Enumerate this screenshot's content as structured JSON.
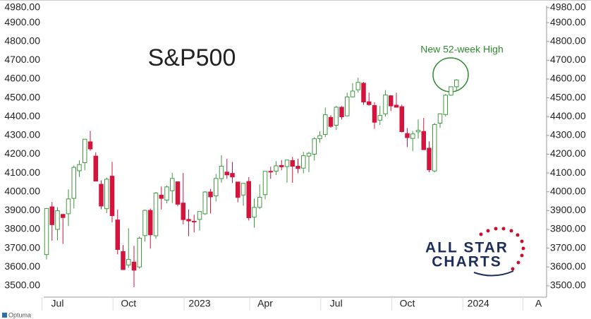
{
  "chart_data": {
    "type": "candlestick",
    "title": "S&P500",
    "annotation": "New 52-week High",
    "categories": [
      null,
      null,
      "Jul",
      null,
      null,
      null,
      null,
      null,
      null,
      null,
      null,
      null,
      null,
      null,
      null,
      "Oct",
      null,
      null,
      null,
      null,
      null,
      null,
      null,
      null,
      null,
      null,
      null,
      null,
      "2023",
      null,
      null,
      null,
      null,
      null,
      null,
      null,
      null,
      null,
      null,
      null,
      "Apr",
      null,
      null,
      null,
      null,
      null,
      null,
      null,
      null,
      null,
      null,
      null,
      null,
      "Jul",
      null,
      null,
      null,
      null,
      null,
      null,
      null,
      null,
      null,
      null,
      null,
      null,
      "Oct",
      null,
      null,
      null,
      null,
      null,
      null,
      null,
      null,
      null,
      null,
      null,
      null,
      "2024",
      null,
      null,
      null,
      null,
      null,
      null,
      null,
      null,
      null,
      null,
      "A"
    ],
    "open": [
      3666,
      3920,
      3800,
      3880,
      3883,
      3965,
      4112,
      4155,
      4266,
      4190,
      4040,
      3910,
      4083,
      3850,
      3682,
      3610,
      3626,
      3600,
      3767,
      3901,
      3766,
      3982,
      3956,
      4006,
      4053,
      3940,
      3853,
      3843,
      3853,
      3883,
      3999,
      3978,
      4070,
      4105,
      4098,
      4052,
      3983,
      4055,
      3865,
      3917,
      3985,
      4109,
      4110,
      4140,
      4134,
      4166,
      4136,
      4126,
      4190,
      4200,
      4283,
      4305,
      4396,
      4354,
      4450,
      4404,
      4505,
      4543,
      4578,
      4479,
      4459,
      4381,
      4415,
      4511,
      4461,
      4453,
      4310,
      4284,
      4319,
      4321,
      4232,
      4111,
      4365,
      4411,
      4514,
      4559,
      null,
      null,
      null,
      null,
      null,
      null,
      null,
      null,
      null,
      null,
      null,
      null,
      null,
      null,
      null
    ],
    "high": [
      3913,
      3946,
      3919,
      3880,
      4013,
      4140,
      4167,
      4280,
      4325,
      4210,
      4061,
      4076,
      4159,
      3906,
      3717,
      3806,
      3712,
      3762,
      3905,
      3911,
      3999,
      4028,
      4034,
      4101,
      4053,
      4100,
      3906,
      3878,
      3895,
      4003,
      4015,
      4095,
      4195,
      4176,
      4159,
      4052,
      4047,
      4078,
      3964,
      4040,
      4110,
      4133,
      4163,
      4169,
      4170,
      4186,
      4175,
      4212,
      4212,
      4291,
      4322,
      4448,
      4408,
      4458,
      4456,
      4528,
      4578,
      4607,
      4584,
      4527,
      4477,
      4458,
      4541,
      4514,
      4527,
      4464,
      4339,
      4324,
      4385,
      4393,
      4268,
      4366,
      4418,
      4520,
      4560,
      4599,
      null,
      null,
      null,
      null,
      null,
      null,
      null,
      null,
      null,
      null,
      null,
      null,
      null,
      null,
      null
    ],
    "low": [
      3640,
      3740,
      3742,
      3722,
      3818,
      3911,
      4079,
      4114,
      4218,
      4057,
      3907,
      3886,
      3837,
      3667,
      3584,
      3595,
      3492,
      3590,
      3735,
      3698,
      3750,
      3906,
      3938,
      3940,
      3923,
      3827,
      3764,
      3784,
      3794,
      3877,
      3885,
      3949,
      4049,
      4069,
      4047,
      3944,
      3926,
      3847,
      3809,
      3908,
      3960,
      4069,
      4089,
      4114,
      4049,
      4048,
      4099,
      4098,
      4104,
      4166,
      4261,
      4291,
      4341,
      4329,
      4385,
      4402,
      4502,
      4528,
      4463,
      4458,
      4335,
      4356,
      4401,
      4430,
      4448,
      4316,
      4238,
      4216,
      4283,
      4223,
      4104,
      4103,
      4340,
      4401,
      4511,
      4537,
      null,
      null,
      null,
      null,
      null,
      null,
      null,
      null,
      null,
      null,
      null,
      null,
      null,
      null,
      null
    ],
    "close": [
      3911,
      3825,
      3899,
      3863,
      3962,
      4130,
      4145,
      4280,
      4228,
      4057,
      3924,
      4067,
      3873,
      3693,
      3586,
      3640,
      3583,
      3753,
      3901,
      3771,
      3993,
      3965,
      4026,
      4071,
      3934,
      3852,
      3845,
      3840,
      3895,
      3999,
      3973,
      4071,
      4136,
      4090,
      4079,
      3970,
      4045,
      3862,
      3917,
      3971,
      4109,
      4105,
      4138,
      4133,
      4169,
      4136,
      4124,
      4192,
      4205,
      4282,
      4299,
      4410,
      4348,
      4450,
      4399,
      4505,
      4536,
      4582,
      4478,
      4464,
      4370,
      4406,
      4515,
      4457,
      4450,
      4320,
      4288,
      4308,
      4327,
      4224,
      4117,
      4358,
      4415,
      4514,
      4559,
      4595,
      null,
      null,
      null,
      null,
      null,
      null,
      null,
      null,
      null,
      null,
      null,
      null,
      null,
      null,
      null
    ],
    "up_color": "#3f9a3f",
    "down_color": "#d4143c",
    "ylim": [
      3462,
      4983
    ],
    "yticks": [
      {
        "value": 3500,
        "label": "3500.00"
      },
      {
        "value": 3600,
        "label": "3600.00"
      },
      {
        "value": 3700,
        "label": "3700.00"
      },
      {
        "value": 3800,
        "label": "3800.00"
      },
      {
        "value": 3900,
        "label": "3900.00"
      },
      {
        "value": 4000,
        "label": "4000.00"
      },
      {
        "value": 4100,
        "label": "4100.00"
      },
      {
        "value": 4200,
        "label": "4200.00"
      },
      {
        "value": 4300,
        "label": "4300.00"
      },
      {
        "value": 4400,
        "label": "4400.00"
      },
      {
        "value": 4500,
        "label": "4500.00"
      },
      {
        "value": 4600,
        "label": "4600.00"
      },
      {
        "value": 4700,
        "label": "4700.00"
      },
      {
        "value": 4800,
        "label": "4800.00"
      },
      {
        "value": 4900,
        "label": "4900.00"
      },
      {
        "value": 4980,
        "label": "4980.00"
      }
    ]
  },
  "logo": {
    "line1": "ALL STAR",
    "line2": "CHARTS"
  },
  "footer": "Optuma"
}
